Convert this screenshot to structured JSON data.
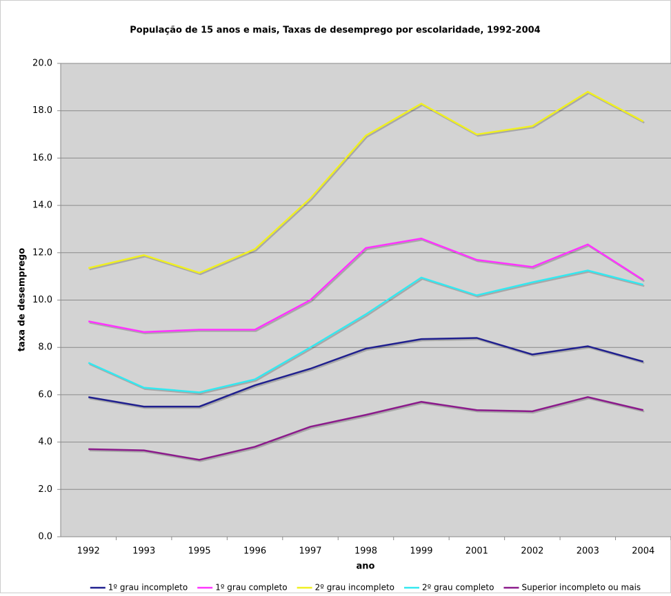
{
  "chart_data": {
    "type": "line",
    "title": "População de 15 anos e mais, Taxas de desemprego por escolaridade, 1992-2004",
    "x_label": "ano",
    "y_label": "taxa de desemprego",
    "categories": [
      "1992",
      "1993",
      "1995",
      "1996",
      "1997",
      "1998",
      "1999",
      "2001",
      "2002",
      "2003",
      "2004"
    ],
    "series": [
      {
        "name": "1º grau incompleto",
        "color": "#1f1f8f",
        "values": [
          5.9,
          5.5,
          5.5,
          6.4,
          7.1,
          7.95,
          8.35,
          8.4,
          7.7,
          8.05,
          7.4
        ]
      },
      {
        "name": "1º grau completo",
        "color": "#ff33ff",
        "values": [
          9.1,
          8.65,
          8.75,
          8.75,
          10.0,
          12.2,
          12.6,
          11.7,
          11.4,
          12.35,
          10.85
        ]
      },
      {
        "name": "2º grau incompleto",
        "color": "#f0f020",
        "values": [
          11.35,
          11.9,
          11.15,
          12.15,
          14.3,
          16.95,
          18.3,
          17.0,
          17.35,
          18.8,
          17.55
        ]
      },
      {
        "name": "2º grau completo",
        "color": "#33e8f0",
        "values": [
          7.35,
          6.3,
          6.1,
          6.65,
          8.0,
          9.4,
          10.95,
          10.2,
          10.75,
          11.25,
          10.65
        ]
      },
      {
        "name": "Superior incompleto ou mais",
        "color": "#8b1a8b",
        "values": [
          3.7,
          3.65,
          3.25,
          3.8,
          4.65,
          5.15,
          5.7,
          5.35,
          5.3,
          5.9,
          5.35
        ]
      }
    ],
    "ylim": [
      0,
      20
    ],
    "yticks": [
      {
        "value": 0,
        "label": "0.0"
      },
      {
        "value": 2,
        "label": "2.0"
      },
      {
        "value": 4,
        "label": "4.0"
      },
      {
        "value": 6,
        "label": "6.0"
      },
      {
        "value": 8,
        "label": "8.0"
      },
      {
        "value": 10,
        "label": "10.0"
      },
      {
        "value": 12,
        "label": "12.0"
      },
      {
        "value": 14,
        "label": "14.0"
      },
      {
        "value": 16,
        "label": "16.0"
      },
      {
        "value": 18,
        "label": "18.0"
      },
      {
        "value": 20,
        "label": "20.0"
      }
    ],
    "grid": true,
    "legend": "bottom"
  }
}
